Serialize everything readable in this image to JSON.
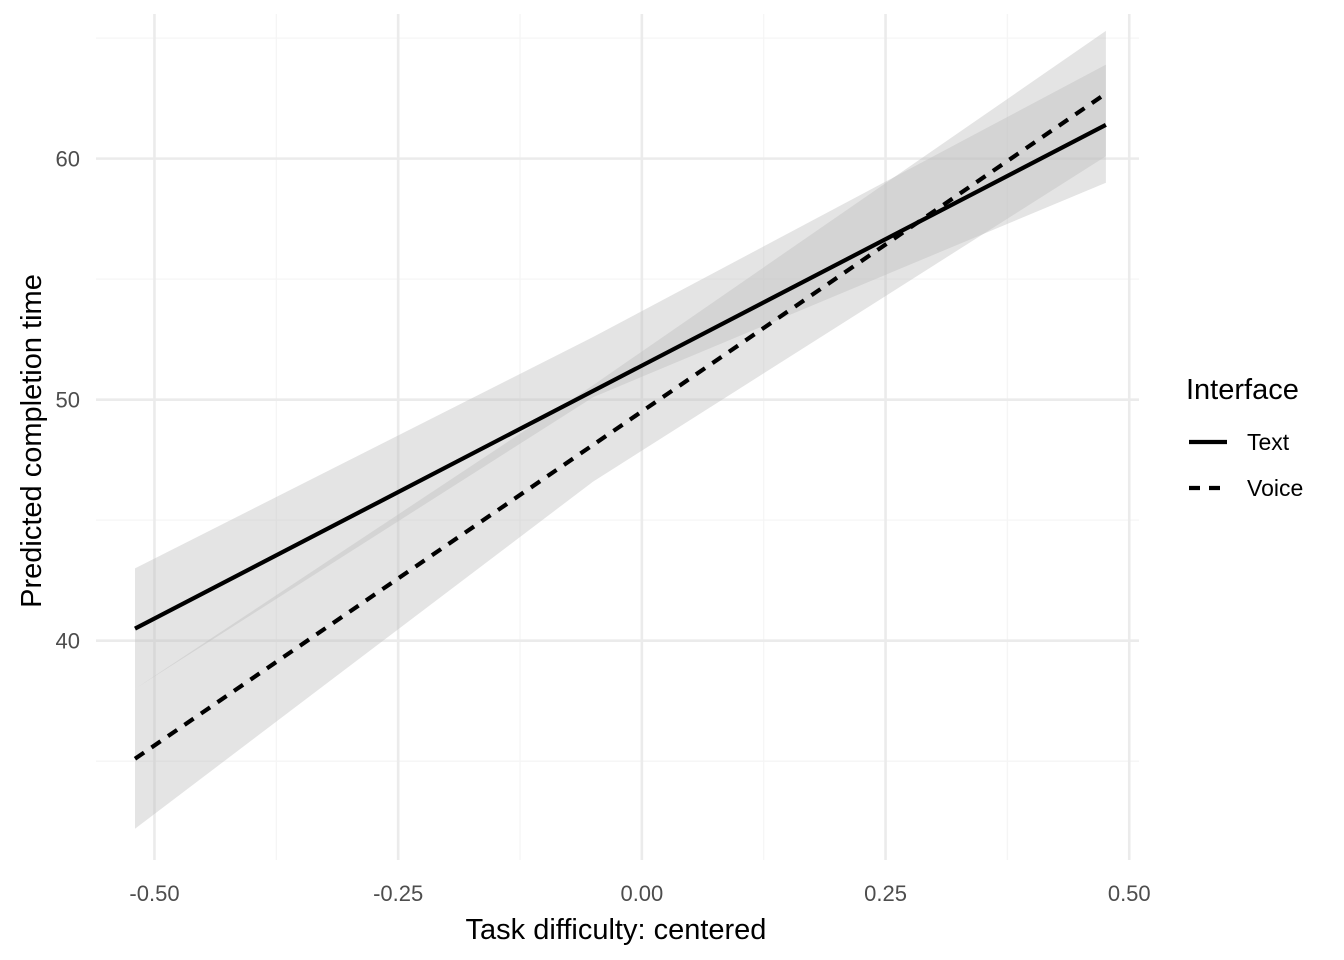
{
  "chart_data": {
    "type": "line",
    "title": "",
    "xlabel": "Task difficulty: centered",
    "ylabel": "Predicted completion time",
    "xlim": [
      -0.56,
      0.51
    ],
    "ylim": [
      30.9,
      66.0
    ],
    "x_ticks": [
      -0.5,
      -0.25,
      0.0,
      0.25,
      0.5
    ],
    "x_tick_labels": [
      "-0.50",
      "-0.25",
      "0.00",
      "0.25",
      "0.50"
    ],
    "x_minor": [
      -0.375,
      -0.125,
      0.125,
      0.375
    ],
    "y_ticks": [
      40,
      50,
      60
    ],
    "y_tick_labels": [
      "40",
      "50",
      "60"
    ],
    "y_minor": [
      35,
      45,
      55,
      65
    ],
    "grid": true,
    "legend": {
      "title": "Interface",
      "position": "right",
      "entries": [
        {
          "label": "Text",
          "linetype": "solid"
        },
        {
          "label": "Voice",
          "linetype": "dashed"
        }
      ]
    },
    "series": [
      {
        "name": "Text",
        "linetype": "solid",
        "x": [
          -0.52,
          0.476
        ],
        "y": [
          40.5,
          61.4
        ],
        "ci_lower": [
          38.0,
          59.0
        ],
        "ci_upper": [
          43.0,
          63.9
        ],
        "ci_anchor_x": -0.05,
        "ci_anchor_lower": 50.1,
        "ci_anchor_upper": 52.6
      },
      {
        "name": "Voice",
        "linetype": "dashed",
        "x": [
          -0.52,
          0.476
        ],
        "y": [
          35.1,
          62.7
        ],
        "ci_lower": [
          32.2,
          60.1
        ],
        "ci_upper": [
          38.0,
          65.3
        ],
        "ci_anchor_x": -0.05,
        "ci_anchor_lower": 46.6,
        "ci_anchor_upper": 50.6
      }
    ],
    "colors": {
      "line": "#000000",
      "ribbon": "#bebebe",
      "grid_major": "#ebebeb",
      "grid_minor": "#f5f5f5",
      "tick_label": "#4d4d4d"
    }
  }
}
